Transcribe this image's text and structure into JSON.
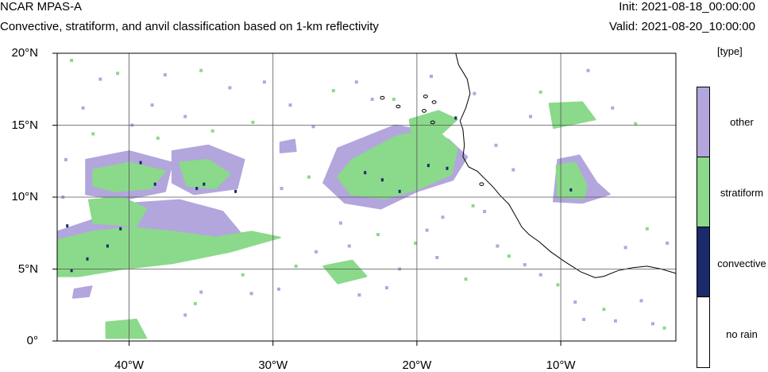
{
  "header": {
    "model_name": "NCAR MPAS-A",
    "subtitle": "Convective, stratiform, and anvil classification based on 1-km reflectivity",
    "init_label": "Init: 2021-08-18_00:00:00",
    "valid_label": "Valid: 2021-08-20_10:00:00"
  },
  "legend": {
    "units": "[type]",
    "entries": [
      {
        "label": "other",
        "color": "#b3a6dd"
      },
      {
        "label": "stratiform",
        "color": "#8bd98b"
      },
      {
        "label": "convective",
        "color": "#1b2a6b"
      },
      {
        "label": "no rain",
        "color": "#ffffff"
      }
    ]
  },
  "map": {
    "lon_range": [
      -45,
      -2
    ],
    "lat_range": [
      0,
      20
    ],
    "x_ticks": [
      {
        "value": -40,
        "label": "40°W"
      },
      {
        "value": -30,
        "label": "30°W"
      },
      {
        "value": -20,
        "label": "20°W"
      },
      {
        "value": -10,
        "label": "10°W"
      }
    ],
    "y_ticks": [
      {
        "value": 20,
        "label": "20°N"
      },
      {
        "value": 15,
        "label": "15°N"
      },
      {
        "value": 10,
        "label": "10°N"
      },
      {
        "value": 5,
        "label": "5°N"
      },
      {
        "value": 0,
        "label": "0°"
      }
    ],
    "coastline": [
      [
        -17.3,
        20.0
      ],
      [
        -17.1,
        19.2
      ],
      [
        -16.5,
        18.2
      ],
      [
        -16.3,
        17.2
      ],
      [
        -16.6,
        16.2
      ],
      [
        -17.0,
        15.3
      ],
      [
        -16.8,
        14.7
      ],
      [
        -16.7,
        13.6
      ],
      [
        -16.8,
        12.8
      ],
      [
        -16.4,
        12.1
      ],
      [
        -15.8,
        11.8
      ],
      [
        -15.2,
        11.2
      ],
      [
        -14.7,
        10.7
      ],
      [
        -14.2,
        10.1
      ],
      [
        -13.6,
        9.5
      ],
      [
        -13.2,
        8.8
      ],
      [
        -12.7,
        7.9
      ],
      [
        -12.2,
        7.4
      ],
      [
        -11.5,
        6.9
      ],
      [
        -10.7,
        6.2
      ],
      [
        -9.7,
        5.5
      ],
      [
        -8.6,
        4.8
      ],
      [
        -7.6,
        4.4
      ],
      [
        -7.0,
        4.5
      ],
      [
        -6.0,
        4.9
      ],
      [
        -5.0,
        5.1
      ],
      [
        -4.0,
        5.2
      ],
      [
        -3.0,
        5.0
      ],
      [
        -2.0,
        4.7
      ]
    ],
    "precip_regions": [
      {
        "type": "other",
        "points": [
          [
            -45,
            7.6
          ],
          [
            -42,
            8.6
          ],
          [
            -39.5,
            9.6
          ],
          [
            -36.5,
            9.8
          ],
          [
            -33.5,
            9.0
          ],
          [
            -32,
            7.2
          ],
          [
            -36,
            6.6
          ],
          [
            -39,
            6.2
          ],
          [
            -42,
            5.6
          ],
          [
            -45,
            5.0
          ]
        ]
      },
      {
        "type": "stratiform",
        "points": [
          [
            -45,
            7.0
          ],
          [
            -42.5,
            7.6
          ],
          [
            -40,
            7.9
          ],
          [
            -37,
            7.6
          ],
          [
            -34,
            7.2
          ],
          [
            -31.5,
            7.6
          ],
          [
            -29.5,
            7.2
          ],
          [
            -33,
            6.2
          ],
          [
            -37,
            5.4
          ],
          [
            -40.5,
            5.0
          ],
          [
            -43.5,
            4.5
          ],
          [
            -45,
            4.5
          ]
        ]
      },
      {
        "type": "other",
        "points": [
          [
            -43,
            12.6
          ],
          [
            -40,
            13.2
          ],
          [
            -37,
            12.4
          ],
          [
            -37.5,
            10.4
          ],
          [
            -40.5,
            9.8
          ],
          [
            -43,
            10.2
          ]
        ]
      },
      {
        "type": "stratiform",
        "points": [
          [
            -42.5,
            11.9
          ],
          [
            -40,
            12.4
          ],
          [
            -37.5,
            11.8
          ],
          [
            -38.5,
            10.6
          ],
          [
            -41,
            10.4
          ],
          [
            -42.5,
            10.8
          ]
        ]
      },
      {
        "type": "stratiform",
        "points": [
          [
            -42.8,
            9.8
          ],
          [
            -40.5,
            10.0
          ],
          [
            -38.8,
            9.2
          ],
          [
            -39.5,
            8.0
          ],
          [
            -42.5,
            8.2
          ]
        ]
      },
      {
        "type": "other",
        "points": [
          [
            -37,
            13.2
          ],
          [
            -34.5,
            13.6
          ],
          [
            -32,
            12.6
          ],
          [
            -32.5,
            10.6
          ],
          [
            -35.5,
            10.2
          ],
          [
            -37,
            11.0
          ]
        ]
      },
      {
        "type": "stratiform",
        "points": [
          [
            -36.5,
            12.4
          ],
          [
            -34.5,
            12.6
          ],
          [
            -33,
            11.6
          ],
          [
            -34,
            10.6
          ],
          [
            -36,
            10.8
          ]
        ]
      },
      {
        "type": "other",
        "points": [
          [
            -25.5,
            13.4
          ],
          [
            -21.5,
            15.0
          ],
          [
            -19.5,
            14.6
          ],
          [
            -17.8,
            14.0
          ],
          [
            -16.5,
            12.8
          ],
          [
            -17.5,
            11.2
          ],
          [
            -20,
            10.4
          ],
          [
            -22.5,
            9.2
          ],
          [
            -25,
            9.6
          ],
          [
            -26.5,
            11.0
          ]
        ]
      },
      {
        "type": "stratiform",
        "points": [
          [
            -24.5,
            12.6
          ],
          [
            -21.5,
            14.2
          ],
          [
            -18.8,
            14.8
          ],
          [
            -17.2,
            13.4
          ],
          [
            -17.6,
            11.6
          ],
          [
            -19.8,
            10.6
          ],
          [
            -22.2,
            9.9
          ],
          [
            -24.6,
            10.2
          ],
          [
            -25.5,
            11.4
          ]
        ]
      },
      {
        "type": "stratiform",
        "points": [
          [
            -20.5,
            15.4
          ],
          [
            -18.5,
            16.0
          ],
          [
            -17.2,
            15.4
          ],
          [
            -18.3,
            14.4
          ],
          [
            -20.4,
            14.6
          ]
        ]
      },
      {
        "type": "other",
        "points": [
          [
            -10.2,
            12.6
          ],
          [
            -8.7,
            12.9
          ],
          [
            -7.5,
            11.0
          ],
          [
            -6.6,
            10.2
          ],
          [
            -8.5,
            9.6
          ],
          [
            -10.5,
            9.7
          ]
        ]
      },
      {
        "type": "stratiform",
        "points": [
          [
            -10.3,
            12.2
          ],
          [
            -9.0,
            12.4
          ],
          [
            -8.2,
            10.8
          ],
          [
            -8.4,
            9.9
          ],
          [
            -10.2,
            10.0
          ]
        ]
      },
      {
        "type": "stratiform",
        "points": [
          [
            -10.8,
            16.5
          ],
          [
            -8.5,
            16.6
          ],
          [
            -7.6,
            15.4
          ],
          [
            -10.5,
            14.8
          ]
        ]
      },
      {
        "type": "stratiform",
        "points": [
          [
            -41.6,
            1.3
          ],
          [
            -39.5,
            1.5
          ],
          [
            -38.8,
            0.2
          ],
          [
            -41.6,
            0.2
          ]
        ]
      },
      {
        "type": "other",
        "points": [
          [
            -43.8,
            3.6
          ],
          [
            -42.6,
            3.8
          ],
          [
            -42.8,
            3.1
          ],
          [
            -43.9,
            3.0
          ]
        ]
      },
      {
        "type": "stratiform",
        "points": [
          [
            -26.5,
            5.2
          ],
          [
            -24.5,
            5.6
          ],
          [
            -23.5,
            4.5
          ],
          [
            -25.5,
            4.0
          ]
        ]
      },
      {
        "type": "other",
        "points": [
          [
            -29.5,
            13.8
          ],
          [
            -28.5,
            14.0
          ],
          [
            -28.4,
            13.2
          ],
          [
            -29.5,
            13.1
          ]
        ]
      }
    ],
    "convective_cells": [
      [
        -41.5,
        6.6
      ],
      [
        -42.9,
        5.7
      ],
      [
        -44.0,
        4.9
      ],
      [
        -40.6,
        7.8
      ],
      [
        -38.2,
        10.9
      ],
      [
        -35.3,
        10.6
      ],
      [
        -34.8,
        10.9
      ],
      [
        -32.6,
        10.4
      ],
      [
        -23.6,
        11.7
      ],
      [
        -22.4,
        11.2
      ],
      [
        -21.2,
        10.4
      ],
      [
        -19.2,
        12.2
      ],
      [
        -17.9,
        12.0
      ],
      [
        -17.3,
        15.5
      ],
      [
        -9.3,
        10.5
      ],
      [
        -44.3,
        8.0
      ],
      [
        -39.2,
        12.4
      ]
    ],
    "scatter_pixels": [
      [
        -44,
        19.5
      ],
      [
        -42,
        18.2
      ],
      [
        -37.5,
        18.5
      ],
      [
        -35,
        18.8
      ],
      [
        -33,
        17.6
      ],
      [
        -30.6,
        18.0
      ],
      [
        -40.8,
        18.6
      ],
      [
        -43.2,
        16.2
      ],
      [
        -38.4,
        16.4
      ],
      [
        -31.4,
        15.2
      ],
      [
        -28.8,
        16.4
      ],
      [
        -27.2,
        14.9
      ],
      [
        -25.8,
        17.4
      ],
      [
        -23.1,
        16.8
      ],
      [
        -24.2,
        18.0
      ],
      [
        -34.2,
        14.6
      ],
      [
        -36.1,
        15.6
      ],
      [
        -29.4,
        10.6
      ],
      [
        -27.5,
        11.4
      ],
      [
        -25.3,
        8.2
      ],
      [
        -27.0,
        6.2
      ],
      [
        -28.4,
        5.2
      ],
      [
        -29.6,
        3.6
      ],
      [
        -31.5,
        3.3
      ],
      [
        -35.4,
        2.6
      ],
      [
        -36.1,
        1.8
      ],
      [
        -35.0,
        3.4
      ],
      [
        -32.1,
        4.6
      ],
      [
        -22.1,
        3.7
      ],
      [
        -21.2,
        5.0
      ],
      [
        -20.1,
        6.8
      ],
      [
        -19.3,
        7.7
      ],
      [
        -18.2,
        8.6
      ],
      [
        -16.1,
        9.4
      ],
      [
        -15.3,
        9.0
      ],
      [
        -14.4,
        6.6
      ],
      [
        -13.6,
        5.9
      ],
      [
        -12.5,
        5.3
      ],
      [
        -11.4,
        4.6
      ],
      [
        -10.2,
        3.9
      ],
      [
        -9.0,
        2.7
      ],
      [
        -8.4,
        1.5
      ],
      [
        -7.0,
        2.2
      ],
      [
        -6.2,
        1.4
      ],
      [
        -4.4,
        2.8
      ],
      [
        -2.8,
        0.9
      ],
      [
        -3.6,
        1.2
      ],
      [
        -5.5,
        6.5
      ],
      [
        -4.0,
        7.8
      ],
      [
        -2.6,
        6.8
      ],
      [
        -12.1,
        15.6
      ],
      [
        -11.4,
        17.3
      ],
      [
        -8.1,
        18.8
      ],
      [
        -6.4,
        16.2
      ],
      [
        -4.8,
        15.1
      ],
      [
        -14.5,
        13.6
      ],
      [
        -13.3,
        11.9
      ],
      [
        -21.6,
        16.8
      ],
      [
        -19.0,
        18.4
      ],
      [
        -16.0,
        17.2
      ],
      [
        -42.5,
        14.4
      ],
      [
        -44.4,
        12.6
      ],
      [
        -44.6,
        10.0
      ],
      [
        -38.0,
        14.1
      ],
      [
        -39.8,
        15.0
      ],
      [
        -18.6,
        5.8
      ],
      [
        -16.6,
        4.3
      ],
      [
        -24.0,
        3.2
      ],
      [
        -24.7,
        6.6
      ],
      [
        -22.7,
        7.4
      ]
    ],
    "dakar_islands": [
      [
        -19.4,
        17.0
      ],
      [
        -18.8,
        16.6
      ],
      [
        -19.5,
        16.0
      ],
      [
        -18.9,
        15.2
      ],
      [
        -21.3,
        16.3
      ],
      [
        -22.4,
        16.9
      ],
      [
        -15.5,
        10.9
      ]
    ]
  }
}
